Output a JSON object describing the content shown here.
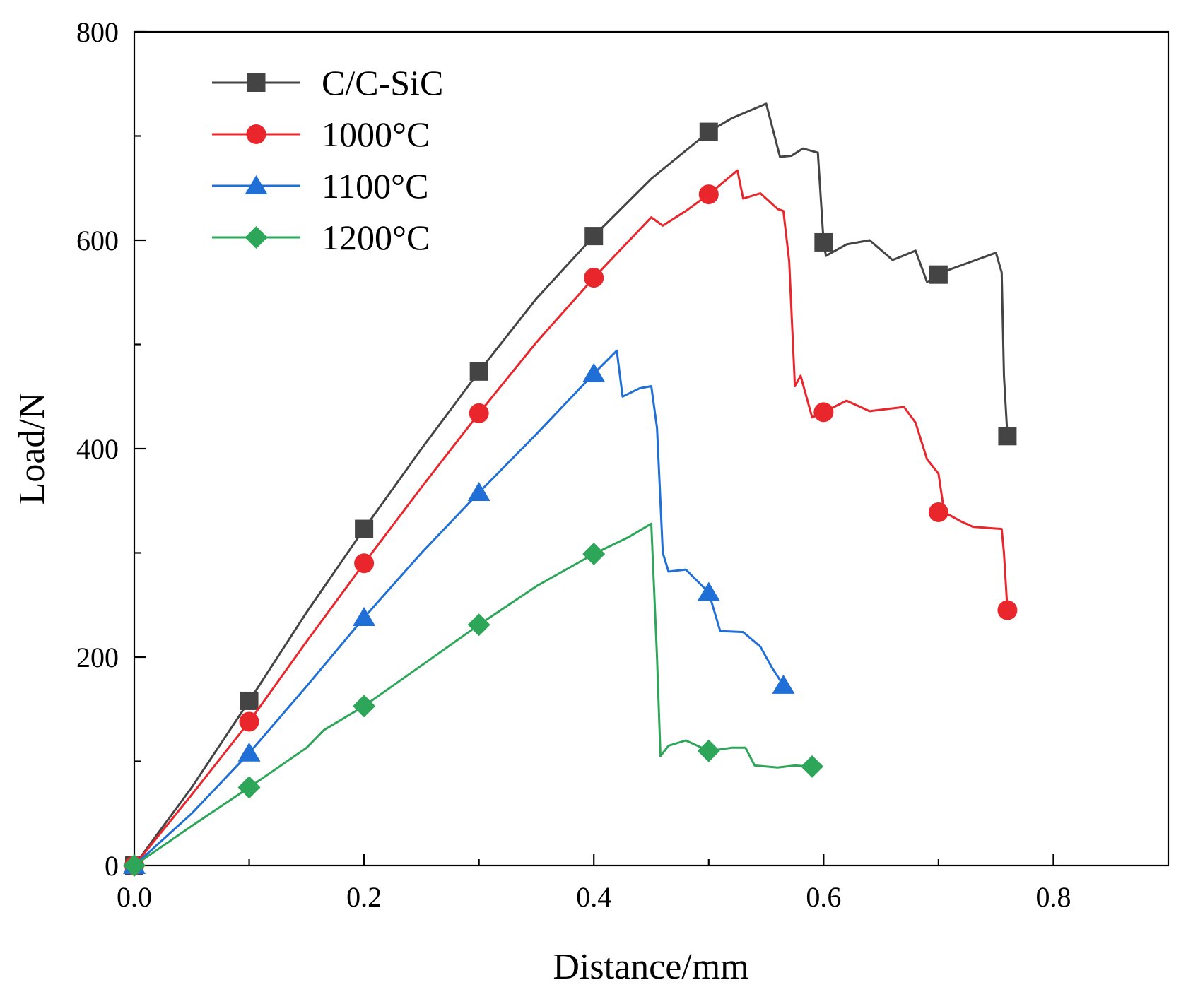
{
  "chart_data": {
    "type": "line",
    "title": "",
    "xlabel": "Distance/mm",
    "ylabel": "Load/N",
    "xlim": [
      0,
      0.9
    ],
    "ylim": [
      0,
      800
    ],
    "x_ticks": [
      "0.0",
      "0.2",
      "0.4",
      "0.6",
      "0.8"
    ],
    "y_ticks": [
      "0",
      "200",
      "400",
      "600",
      "800"
    ],
    "x_tick_values": [
      0,
      0.2,
      0.4,
      0.6,
      0.8
    ],
    "y_tick_values": [
      0,
      200,
      400,
      600,
      800
    ],
    "x_minor_tick_values": [
      0.1,
      0.3,
      0.5,
      0.7
    ],
    "y_minor_tick_values": [
      100,
      300,
      500,
      700
    ],
    "grid": false,
    "legend_position": "top-left",
    "series": [
      {
        "name": "C/C-SiC",
        "color": "#444444",
        "marker": "square",
        "markers": [
          [
            0.1,
            158
          ],
          [
            0.2,
            323
          ],
          [
            0.3,
            474
          ],
          [
            0.4,
            604
          ],
          [
            0.5,
            704
          ],
          [
            0.6,
            598
          ],
          [
            0.7,
            567
          ],
          [
            0.76,
            412
          ]
        ],
        "curve": [
          [
            0,
            0
          ],
          [
            0.05,
            75
          ],
          [
            0.1,
            158
          ],
          [
            0.15,
            243
          ],
          [
            0.2,
            323
          ],
          [
            0.25,
            400
          ],
          [
            0.3,
            474
          ],
          [
            0.35,
            544
          ],
          [
            0.4,
            604
          ],
          [
            0.45,
            659
          ],
          [
            0.5,
            704
          ],
          [
            0.52,
            717
          ],
          [
            0.55,
            731
          ],
          [
            0.562,
            680
          ],
          [
            0.572,
            681
          ],
          [
            0.582,
            688
          ],
          [
            0.595,
            684
          ],
          [
            0.6,
            598
          ],
          [
            0.602,
            585
          ],
          [
            0.62,
            596
          ],
          [
            0.64,
            600
          ],
          [
            0.66,
            581
          ],
          [
            0.68,
            590
          ],
          [
            0.69,
            560
          ],
          [
            0.71,
            572
          ],
          [
            0.73,
            580
          ],
          [
            0.75,
            588
          ],
          [
            0.755,
            569
          ],
          [
            0.757,
            470
          ],
          [
            0.76,
            412
          ]
        ]
      },
      {
        "name": "1000°C",
        "color": "#e8262b",
        "marker": "circle",
        "markers": [
          [
            0.1,
            138
          ],
          [
            0.2,
            290
          ],
          [
            0.3,
            434
          ],
          [
            0.4,
            564
          ],
          [
            0.5,
            644
          ],
          [
            0.6,
            435
          ],
          [
            0.7,
            339
          ],
          [
            0.76,
            245
          ]
        ],
        "curve": [
          [
            0,
            0
          ],
          [
            0.05,
            68
          ],
          [
            0.1,
            138
          ],
          [
            0.15,
            215
          ],
          [
            0.2,
            290
          ],
          [
            0.25,
            363
          ],
          [
            0.3,
            434
          ],
          [
            0.35,
            502
          ],
          [
            0.4,
            564
          ],
          [
            0.45,
            622
          ],
          [
            0.46,
            614
          ],
          [
            0.48,
            628
          ],
          [
            0.5,
            644
          ],
          [
            0.525,
            667
          ],
          [
            0.53,
            640
          ],
          [
            0.545,
            645
          ],
          [
            0.56,
            630
          ],
          [
            0.565,
            628
          ],
          [
            0.57,
            580
          ],
          [
            0.575,
            460
          ],
          [
            0.58,
            470
          ],
          [
            0.59,
            430
          ],
          [
            0.6,
            435
          ],
          [
            0.62,
            446
          ],
          [
            0.64,
            436
          ],
          [
            0.67,
            440
          ],
          [
            0.68,
            425
          ],
          [
            0.69,
            390
          ],
          [
            0.7,
            376
          ],
          [
            0.705,
            339
          ],
          [
            0.72,
            330
          ],
          [
            0.73,
            325
          ],
          [
            0.755,
            323
          ],
          [
            0.757,
            300
          ],
          [
            0.76,
            245
          ]
        ]
      },
      {
        "name": "1100°C",
        "color": "#1f6fd6",
        "marker": "triangle",
        "markers": [
          [
            0.1,
            108
          ],
          [
            0.2,
            238
          ],
          [
            0.3,
            358
          ],
          [
            0.4,
            472
          ],
          [
            0.5,
            262
          ],
          [
            0.565,
            173
          ]
        ],
        "curve": [
          [
            0,
            0
          ],
          [
            0.05,
            50
          ],
          [
            0.1,
            108
          ],
          [
            0.15,
            172
          ],
          [
            0.2,
            238
          ],
          [
            0.25,
            300
          ],
          [
            0.3,
            358
          ],
          [
            0.35,
            414
          ],
          [
            0.4,
            472
          ],
          [
            0.42,
            494
          ],
          [
            0.425,
            450
          ],
          [
            0.44,
            458
          ],
          [
            0.45,
            460
          ],
          [
            0.455,
            420
          ],
          [
            0.46,
            300
          ],
          [
            0.465,
            282
          ],
          [
            0.48,
            284
          ],
          [
            0.5,
            262
          ],
          [
            0.51,
            225
          ],
          [
            0.53,
            224
          ],
          [
            0.545,
            210
          ],
          [
            0.555,
            190
          ],
          [
            0.565,
            173
          ]
        ]
      },
      {
        "name": "1200°C",
        "color": "#2ea65a",
        "marker": "diamond",
        "markers": [
          [
            0.1,
            75
          ],
          [
            0.2,
            153
          ],
          [
            0.3,
            231
          ],
          [
            0.4,
            299
          ],
          [
            0.5,
            110
          ],
          [
            0.59,
            95
          ]
        ],
        "curve": [
          [
            0,
            0
          ],
          [
            0.05,
            38
          ],
          [
            0.1,
            75
          ],
          [
            0.15,
            113
          ],
          [
            0.165,
            130
          ],
          [
            0.2,
            153
          ],
          [
            0.25,
            192
          ],
          [
            0.3,
            231
          ],
          [
            0.35,
            268
          ],
          [
            0.4,
            299
          ],
          [
            0.43,
            315
          ],
          [
            0.45,
            328
          ],
          [
            0.455,
            200
          ],
          [
            0.458,
            105
          ],
          [
            0.465,
            115
          ],
          [
            0.48,
            120
          ],
          [
            0.5,
            110
          ],
          [
            0.52,
            113
          ],
          [
            0.532,
            113
          ],
          [
            0.54,
            96
          ],
          [
            0.56,
            94
          ],
          [
            0.575,
            96
          ],
          [
            0.59,
            95
          ]
        ]
      }
    ]
  }
}
